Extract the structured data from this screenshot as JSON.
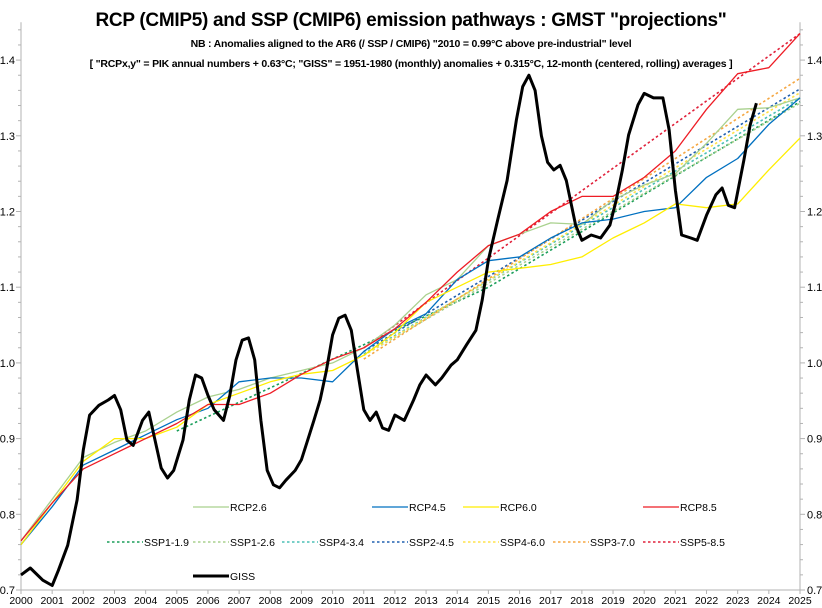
{
  "chart_data": {
    "type": "line",
    "title": "RCP (CMIP5) and SSP (CMIP6) emission pathways : GMST \"projections\"",
    "subtitle": "NB : Anomalies aligned to the AR6 (/ SSP / CMIP6) \"2010 = 0.99°C above pre-industrial\" level",
    "note": "[ \"RCPx,y\" = PIK annual numbers + 0.63°C; \"GISS\" = 1951-1980 (monthly) anomalies + 0.315°C, 12-month (centered, rolling) averages ]",
    "xlabel": "",
    "ylabel": "",
    "xlim": [
      2000,
      2025
    ],
    "ylim": [
      0.7,
      1.45
    ],
    "x_ticks": [
      "2000",
      "2001",
      "2002",
      "2003",
      "2004",
      "2005",
      "2006",
      "2007",
      "2008",
      "2009",
      "2010",
      "2011",
      "2012",
      "2013",
      "2014",
      "2015",
      "2016",
      "2017",
      "2018",
      "2019",
      "2020",
      "2021",
      "2022",
      "2023",
      "2024",
      "2025"
    ],
    "y_ticks": [
      "0.7",
      "0.8",
      "0.9",
      "1.0",
      "1.1",
      "1.2",
      "1.3",
      "1.4"
    ],
    "y_axes": [
      "left",
      "right"
    ],
    "grid": false,
    "legend_placement": "bottom-inside",
    "series": [
      {
        "name": "RCP2.6",
        "color": "#a9d18e",
        "style": "solid",
        "x": [
          2000,
          2001,
          2002,
          2003,
          2004,
          2005,
          2006,
          2007,
          2008,
          2009,
          2010,
          2011,
          2012,
          2013,
          2014,
          2015,
          2016,
          2017,
          2018,
          2019,
          2020,
          2021,
          2022,
          2023,
          2024,
          2025
        ],
        "y": [
          0.765,
          0.82,
          0.875,
          0.895,
          0.91,
          0.935,
          0.955,
          0.965,
          0.98,
          0.99,
          1.0,
          1.02,
          1.05,
          1.09,
          1.11,
          1.155,
          1.17,
          1.185,
          1.183,
          1.215,
          1.235,
          1.25,
          1.29,
          1.335,
          1.337,
          1.35
        ]
      },
      {
        "name": "RCP4.5",
        "color": "#0070c0",
        "style": "solid",
        "x": [
          2000,
          2001,
          2002,
          2003,
          2004,
          2005,
          2006,
          2007,
          2008,
          2009,
          2010,
          2011,
          2012,
          2013,
          2014,
          2015,
          2016,
          2017,
          2018,
          2019,
          2020,
          2021,
          2022,
          2023,
          2024,
          2025
        ],
        "y": [
          0.76,
          0.81,
          0.865,
          0.885,
          0.905,
          0.925,
          0.94,
          0.975,
          0.98,
          0.98,
          0.975,
          1.015,
          1.045,
          1.065,
          1.11,
          1.135,
          1.14,
          1.165,
          1.185,
          1.19,
          1.2,
          1.205,
          1.245,
          1.27,
          1.315,
          1.35
        ]
      },
      {
        "name": "RCP6.0",
        "color": "#ffee00",
        "style": "solid",
        "x": [
          2000,
          2001,
          2002,
          2003,
          2004,
          2005,
          2006,
          2007,
          2008,
          2009,
          2010,
          2011,
          2012,
          2013,
          2014,
          2015,
          2016,
          2017,
          2018,
          2019,
          2020,
          2021,
          2022,
          2023,
          2024,
          2025
        ],
        "y": [
          0.76,
          0.815,
          0.87,
          0.9,
          0.9,
          0.915,
          0.945,
          0.96,
          0.975,
          0.985,
          0.99,
          1.01,
          1.04,
          1.08,
          1.1,
          1.12,
          1.125,
          1.13,
          1.14,
          1.165,
          1.185,
          1.21,
          1.205,
          1.21,
          1.255,
          1.297
        ]
      },
      {
        "name": "RCP8.5",
        "color": "#ee1c25",
        "style": "solid",
        "x": [
          2000,
          2001,
          2002,
          2003,
          2004,
          2005,
          2006,
          2007,
          2008,
          2009,
          2010,
          2011,
          2012,
          2013,
          2014,
          2015,
          2016,
          2017,
          2018,
          2019,
          2020,
          2021,
          2022,
          2023,
          2024,
          2025
        ],
        "y": [
          0.765,
          0.815,
          0.86,
          0.88,
          0.9,
          0.92,
          0.945,
          0.945,
          0.96,
          0.985,
          1.005,
          1.02,
          1.045,
          1.08,
          1.12,
          1.155,
          1.17,
          1.2,
          1.22,
          1.22,
          1.245,
          1.28,
          1.335,
          1.382,
          1.39,
          1.435
        ]
      },
      {
        "name": "SSP1-1.9",
        "color": "#1a9e5a",
        "style": "dotted",
        "x": [
          2005,
          2015,
          2025
        ],
        "y": [
          0.91,
          1.1,
          1.345
        ]
      },
      {
        "name": "SSP1-2.6",
        "color": "#a9d18e",
        "style": "dotted",
        "x": [
          2011,
          2025
        ],
        "y": [
          1.01,
          1.343
        ]
      },
      {
        "name": "SSP4-3.4",
        "color": "#4bbfb5",
        "style": "dotted",
        "x": [
          2011,
          2025
        ],
        "y": [
          1.012,
          1.35
        ]
      },
      {
        "name": "SSP2-4.5",
        "color": "#2060b0",
        "style": "dotted",
        "x": [
          2011,
          2025
        ],
        "y": [
          1.015,
          1.362
        ]
      },
      {
        "name": "SSP4-6.0",
        "color": "#ffe24a",
        "style": "dotted",
        "x": [
          2011,
          2025
        ],
        "y": [
          1.01,
          1.357
        ]
      },
      {
        "name": "SSP3-7.0",
        "color": "#f5a742",
        "style": "dotted",
        "x": [
          2011,
          2025
        ],
        "y": [
          1.005,
          1.376
        ]
      },
      {
        "name": "SSP5-8.5",
        "color": "#e0203a",
        "style": "dotted",
        "x": [
          2011,
          2025
        ],
        "y": [
          1.02,
          1.435
        ]
      },
      {
        "name": "GISS",
        "color": "#000000",
        "style": "thick",
        "x": [
          2000.0,
          2000.3,
          2000.7,
          2001.0,
          2001.2,
          2001.5,
          2001.8,
          2002.0,
          2002.2,
          2002.5,
          2002.8,
          2003.0,
          2003.2,
          2003.4,
          2003.6,
          2003.9,
          2004.1,
          2004.3,
          2004.5,
          2004.7,
          2004.9,
          2005.2,
          2005.4,
          2005.6,
          2005.8,
          2006.0,
          2006.2,
          2006.5,
          2006.7,
          2006.9,
          2007.1,
          2007.3,
          2007.5,
          2007.7,
          2007.9,
          2008.1,
          2008.3,
          2008.5,
          2008.8,
          2009.0,
          2009.2,
          2009.4,
          2009.6,
          2009.8,
          2010.0,
          2010.2,
          2010.4,
          2010.6,
          2010.8,
          2011.0,
          2011.2,
          2011.4,
          2011.6,
          2011.8,
          2012.0,
          2012.3,
          2012.6,
          2012.8,
          2013.0,
          2013.3,
          2013.5,
          2013.8,
          2014.0,
          2014.3,
          2014.6,
          2014.8,
          2015.0,
          2015.3,
          2015.6,
          2015.9,
          2016.1,
          2016.3,
          2016.5,
          2016.7,
          2016.9,
          2017.1,
          2017.3,
          2017.5,
          2017.8,
          2018.0,
          2018.3,
          2018.6,
          2018.9,
          2019.1,
          2019.3,
          2019.5,
          2019.8,
          2020.0,
          2020.3,
          2020.6,
          2020.8,
          2021.0,
          2021.2,
          2021.5,
          2021.7,
          2022.0,
          2022.3,
          2022.5,
          2022.7,
          2022.9,
          2023.2,
          2023.4,
          2023.6
        ],
        "y": [
          0.72,
          0.729,
          0.713,
          0.706,
          0.726,
          0.759,
          0.819,
          0.885,
          0.931,
          0.944,
          0.951,
          0.957,
          0.938,
          0.898,
          0.891,
          0.924,
          0.935,
          0.898,
          0.861,
          0.848,
          0.858,
          0.898,
          0.951,
          0.984,
          0.98,
          0.957,
          0.938,
          0.924,
          0.957,
          1.004,
          1.03,
          1.033,
          1.004,
          0.924,
          0.858,
          0.839,
          0.835,
          0.845,
          0.858,
          0.872,
          0.898,
          0.924,
          0.951,
          0.99,
          1.037,
          1.059,
          1.063,
          1.043,
          0.99,
          0.938,
          0.924,
          0.935,
          0.914,
          0.911,
          0.931,
          0.924,
          0.951,
          0.971,
          0.984,
          0.971,
          0.98,
          0.997,
          1.004,
          1.024,
          1.043,
          1.083,
          1.136,
          1.189,
          1.241,
          1.321,
          1.365,
          1.38,
          1.36,
          1.3,
          1.265,
          1.255,
          1.261,
          1.241,
          1.182,
          1.162,
          1.169,
          1.165,
          1.182,
          1.215,
          1.255,
          1.301,
          1.341,
          1.356,
          1.35,
          1.35,
          1.308,
          1.228,
          1.169,
          1.165,
          1.162,
          1.195,
          1.222,
          1.231,
          1.208,
          1.205,
          1.268,
          1.314,
          1.343
        ]
      }
    ]
  }
}
